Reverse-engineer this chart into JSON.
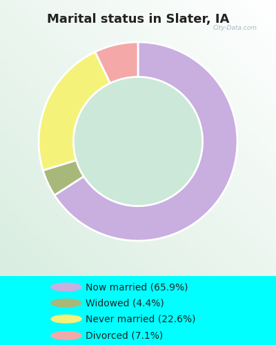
{
  "title": "Marital status in Slater, IA",
  "title_color": "#222222",
  "title_fontsize": 13,
  "bg_cyan": "#00ffff",
  "bg_chart": "#d6ede0",
  "categories": [
    "Now married",
    "Widowed",
    "Never married",
    "Divorced"
  ],
  "values": [
    65.9,
    4.4,
    22.6,
    7.1
  ],
  "colors": [
    "#c9aee0",
    "#a8b87a",
    "#f5f27a",
    "#f5a8a8"
  ],
  "legend_labels": [
    "Now married (65.9%)",
    "Widowed (4.4%)",
    "Never married (22.6%)",
    "Divorced (7.1%)"
  ],
  "donut_width": 0.35,
  "start_angle": 90,
  "watermark": "City-Data.com"
}
